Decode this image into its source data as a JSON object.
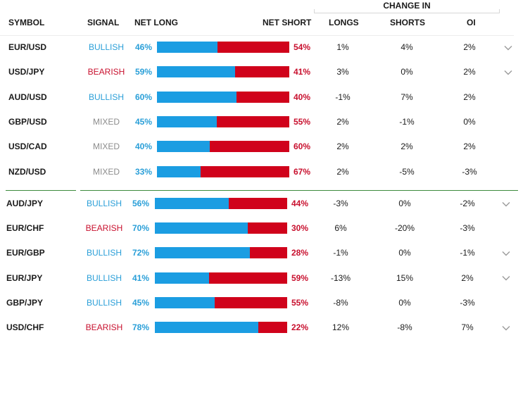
{
  "header": {
    "change_in": "CHANGE IN",
    "symbol": "SYMBOL",
    "signal": "SIGNAL",
    "net_long": "NET LONG",
    "net_short": "NET SHORT",
    "longs": "LONGS",
    "shorts": "SHORTS",
    "oi": "OI"
  },
  "colors": {
    "long": "#1b9de2",
    "short": "#d0021b",
    "bullish": "#2a9fd8",
    "bearish": "#c8102e",
    "mixed": "#8c8c8c",
    "divider": "#3d8b3d"
  },
  "groups": [
    {
      "rows": [
        {
          "symbol": "EUR/USD",
          "signal": "BULLISH",
          "net_long": "46%",
          "net_short": "54%",
          "long_pct": 46,
          "longs": "1%",
          "shorts": "4%",
          "oi": "2%",
          "chevron": true
        },
        {
          "symbol": "USD/JPY",
          "signal": "BEARISH",
          "net_long": "59%",
          "net_short": "41%",
          "long_pct": 59,
          "longs": "3%",
          "shorts": "0%",
          "oi": "2%",
          "chevron": true
        },
        {
          "symbol": "AUD/USD",
          "signal": "BULLISH",
          "net_long": "60%",
          "net_short": "40%",
          "long_pct": 60,
          "longs": "-1%",
          "shorts": "7%",
          "oi": "2%",
          "chevron": false
        },
        {
          "symbol": "GBP/USD",
          "signal": "MIXED",
          "net_long": "45%",
          "net_short": "55%",
          "long_pct": 45,
          "longs": "2%",
          "shorts": "-1%",
          "oi": "0%",
          "chevron": false
        },
        {
          "symbol": "USD/CAD",
          "signal": "MIXED",
          "net_long": "40%",
          "net_short": "60%",
          "long_pct": 40,
          "longs": "2%",
          "shorts": "2%",
          "oi": "2%",
          "chevron": false
        },
        {
          "symbol": "NZD/USD",
          "signal": "MIXED",
          "net_long": "33%",
          "net_short": "67%",
          "long_pct": 33,
          "longs": "2%",
          "shorts": "-5%",
          "oi": "-3%",
          "chevron": false
        }
      ]
    },
    {
      "rows": [
        {
          "symbol": "AUD/JPY",
          "signal": "BULLISH",
          "net_long": "56%",
          "net_short": "44%",
          "long_pct": 56,
          "longs": "-3%",
          "shorts": "0%",
          "oi": "-2%",
          "chevron": true
        },
        {
          "symbol": "EUR/CHF",
          "signal": "BEARISH",
          "net_long": "70%",
          "net_short": "30%",
          "long_pct": 70,
          "longs": "6%",
          "shorts": "-20%",
          "oi": "-3%",
          "chevron": false
        },
        {
          "symbol": "EUR/GBP",
          "signal": "BULLISH",
          "net_long": "72%",
          "net_short": "28%",
          "long_pct": 72,
          "longs": "-1%",
          "shorts": "0%",
          "oi": "-1%",
          "chevron": true
        },
        {
          "symbol": "EUR/JPY",
          "signal": "BULLISH",
          "net_long": "41%",
          "net_short": "59%",
          "long_pct": 41,
          "longs": "-13%",
          "shorts": "15%",
          "oi": "2%",
          "chevron": true
        },
        {
          "symbol": "GBP/JPY",
          "signal": "BULLISH",
          "net_long": "45%",
          "net_short": "55%",
          "long_pct": 45,
          "longs": "-8%",
          "shorts": "0%",
          "oi": "-3%",
          "chevron": false
        },
        {
          "symbol": "USD/CHF",
          "signal": "BEARISH",
          "net_long": "78%",
          "net_short": "22%",
          "long_pct": 78,
          "longs": "12%",
          "shorts": "-8%",
          "oi": "7%",
          "chevron": true
        }
      ]
    }
  ]
}
